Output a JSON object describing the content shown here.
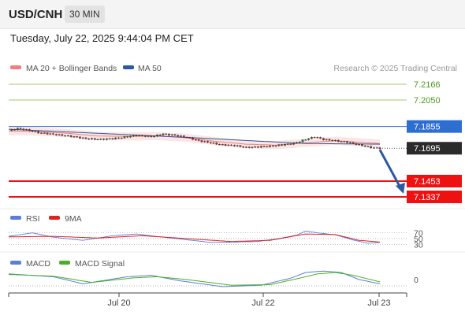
{
  "header": {
    "symbol": "USD/CNH",
    "interval": "30 MIN",
    "datetime": "Tuesday, July 22, 2025 9:44:04 PM CET"
  },
  "legend": {
    "ma20_bb": "MA 20 + Bollinger Bands",
    "ma50": "MA 50",
    "ma20_color": "#f08080",
    "ma50_color": "#2c5aa0"
  },
  "credit": "Research © 2025 Trading Central",
  "price_levels": [
    {
      "value": 7.2166,
      "label": "7.2166",
      "kind": "resistance",
      "color": "#9ccc65"
    },
    {
      "value": 7.205,
      "label": "7.2050",
      "kind": "resistance",
      "color": "#9ccc65"
    },
    {
      "value": 7.1855,
      "label": "7.1855",
      "kind": "pivot",
      "color": "#2c6fd1"
    },
    {
      "value": 7.1695,
      "label": "7.1695",
      "kind": "last-price",
      "color": "#222222"
    },
    {
      "value": 7.1453,
      "label": "7.1453",
      "kind": "target",
      "color": "#ee1111"
    },
    {
      "value": 7.1337,
      "label": "7.1337",
      "kind": "target",
      "color": "#ee1111"
    }
  ],
  "rsi": {
    "label": "RSI",
    "ma_label": "9MA",
    "rsi_color": "#5b7fd6",
    "ma_color": "#dd2222",
    "levels": [
      "70",
      "50",
      "30"
    ]
  },
  "macd": {
    "label": "MACD",
    "signal_label": "MACD Signal",
    "macd_color": "#5b7fd6",
    "signal_color": "#4caf22",
    "zero_label": "0"
  },
  "x_ticks": [
    "Jul 20",
    "Jul 22",
    "Jul 23"
  ],
  "chart_data": {
    "type": "candlestick",
    "symbol": "USD/CNH",
    "ylim": [
      7.128,
      7.225
    ],
    "price_path": [
      [
        0,
        7.1825
      ],
      [
        3,
        7.184
      ],
      [
        6,
        7.183
      ],
      [
        10,
        7.181
      ],
      [
        16,
        7.1795
      ],
      [
        22,
        7.178
      ],
      [
        26,
        7.1765
      ],
      [
        31,
        7.176
      ],
      [
        37,
        7.177
      ],
      [
        43,
        7.179
      ],
      [
        48,
        7.178
      ],
      [
        52,
        7.18
      ],
      [
        56,
        7.179
      ],
      [
        60,
        7.1775
      ],
      [
        64,
        7.175
      ],
      [
        68,
        7.1735
      ],
      [
        72,
        7.172
      ],
      [
        76,
        7.1715
      ],
      [
        80,
        7.17
      ],
      [
        84,
        7.1705
      ],
      [
        88,
        7.171
      ],
      [
        92,
        7.172
      ],
      [
        96,
        7.173
      ],
      [
        100,
        7.176
      ],
      [
        103,
        7.178
      ],
      [
        106,
        7.176
      ],
      [
        110,
        7.175
      ],
      [
        114,
        7.174
      ],
      [
        118,
        7.172
      ],
      [
        122,
        7.17
      ],
      [
        125,
        7.1695
      ]
    ],
    "ma20_path": [
      [
        0,
        7.1822
      ],
      [
        10,
        7.1818
      ],
      [
        20,
        7.1805
      ],
      [
        30,
        7.1785
      ],
      [
        40,
        7.1782
      ],
      [
        50,
        7.1785
      ],
      [
        60,
        7.1772
      ],
      [
        70,
        7.1745
      ],
      [
        80,
        7.1725
      ],
      [
        90,
        7.1718
      ],
      [
        100,
        7.1735
      ],
      [
        110,
        7.175
      ],
      [
        125,
        7.173
      ]
    ],
    "ma50_path": [
      [
        0,
        7.1835
      ],
      [
        20,
        7.1815
      ],
      [
        40,
        7.1795
      ],
      [
        60,
        7.1775
      ],
      [
        80,
        7.1752
      ],
      [
        100,
        7.173
      ],
      [
        125,
        7.1725
      ]
    ],
    "bollinger_width": 0.003,
    "rsi_path": [
      [
        0,
        58
      ],
      [
        8,
        70
      ],
      [
        15,
        55
      ],
      [
        25,
        44
      ],
      [
        35,
        60
      ],
      [
        43,
        66
      ],
      [
        52,
        55
      ],
      [
        60,
        46
      ],
      [
        68,
        37
      ],
      [
        76,
        38
      ],
      [
        84,
        40
      ],
      [
        92,
        52
      ],
      [
        97,
        62
      ],
      [
        100,
        76
      ],
      [
        104,
        70
      ],
      [
        110,
        63
      ],
      [
        116,
        45
      ],
      [
        121,
        34
      ],
      [
        125,
        37
      ]
    ],
    "rsi_ma_path": [
      [
        0,
        56
      ],
      [
        15,
        58
      ],
      [
        30,
        52
      ],
      [
        45,
        60
      ],
      [
        60,
        50
      ],
      [
        75,
        40
      ],
      [
        88,
        44
      ],
      [
        100,
        66
      ],
      [
        110,
        64
      ],
      [
        118,
        44
      ],
      [
        125,
        38
      ]
    ],
    "macd_path": [
      [
        0,
        0.002
      ],
      [
        15,
        0.001
      ],
      [
        25,
        -0.0015
      ],
      [
        40,
        0.001
      ],
      [
        48,
        0.0015
      ],
      [
        58,
        -0.0005
      ],
      [
        72,
        -0.0025
      ],
      [
        85,
        -0.002
      ],
      [
        95,
        0.0005
      ],
      [
        100,
        0.0025
      ],
      [
        106,
        0.003
      ],
      [
        112,
        0.0025
      ],
      [
        118,
        0.0
      ],
      [
        125,
        -0.0015
      ]
    ],
    "macd_signal_path": [
      [
        0,
        0.0018
      ],
      [
        15,
        0.0012
      ],
      [
        28,
        -0.001
      ],
      [
        42,
        0.0006
      ],
      [
        50,
        0.001
      ],
      [
        60,
        0.0
      ],
      [
        75,
        -0.002
      ],
      [
        88,
        -0.0018
      ],
      [
        98,
        0.0005
      ],
      [
        104,
        0.002
      ],
      [
        110,
        0.0025
      ],
      [
        116,
        0.0015
      ],
      [
        125,
        -0.0008
      ]
    ],
    "macd_range": [
      -0.005,
      0.005
    ]
  }
}
